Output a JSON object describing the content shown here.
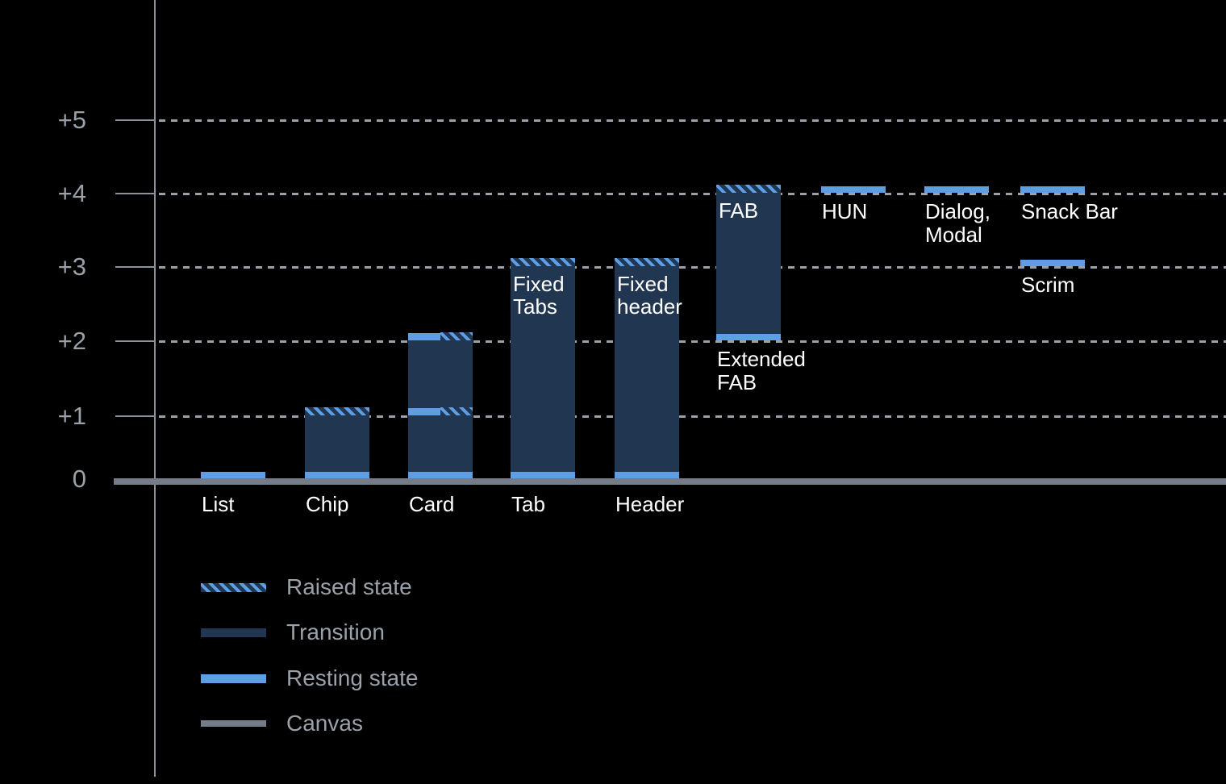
{
  "chart_data": {
    "type": "bar",
    "description": "Elevation diagram of UI components, levels 0 to +5",
    "grid": "dotted horizontal lines at each level",
    "y_axis": {
      "tick_labels": [
        "+5",
        "+4",
        "+3",
        "+2",
        "+1",
        "0"
      ],
      "tick_values": [
        5,
        4,
        3,
        2,
        1,
        0
      ],
      "range": [
        0,
        5
      ]
    },
    "x_axis_labels": [
      "List",
      "Chip",
      "Card",
      "Tab",
      "Header"
    ],
    "components": [
      {
        "name": "List",
        "column": 0,
        "axis_label": "List",
        "resting": [
          0
        ]
      },
      {
        "name": "Chip",
        "column": 1,
        "axis_label": "Chip",
        "transition": [
          0,
          1
        ],
        "raised": [
          1
        ],
        "resting": [
          0
        ]
      },
      {
        "name": "Card",
        "column": 2,
        "axis_label": "Card",
        "transition": [
          0,
          2
        ],
        "split": [
          2,
          1
        ],
        "resting": [
          0
        ]
      },
      {
        "name": "Tab",
        "column": 3,
        "axis_label": "Tab",
        "transition": [
          0,
          3
        ],
        "raised": [
          3
        ],
        "resting": [
          0
        ],
        "bar_label": [
          "Fixed",
          "Tabs"
        ],
        "bar_label_level": 3
      },
      {
        "name": "Header",
        "column": 4,
        "axis_label": "Header",
        "transition": [
          0,
          3
        ],
        "raised": [
          3
        ],
        "resting": [
          0
        ],
        "bar_label": [
          "Fixed",
          "header"
        ],
        "bar_label_level": 3
      },
      {
        "name": "FAB",
        "column": 5,
        "transition": [
          2,
          4
        ],
        "raised": [
          4
        ],
        "resting": [
          2
        ],
        "bar_label": [
          "FAB"
        ],
        "bar_label_level": 4,
        "below_label": [
          "Extended",
          "FAB"
        ],
        "below_label_level": 2
      },
      {
        "name": "HUN",
        "column": 6,
        "resting": [
          4
        ],
        "below_label": [
          "HUN"
        ],
        "below_label_level": 4
      },
      {
        "name": "Dialog, Modal",
        "column": 7,
        "resting": [
          4
        ],
        "below_label": [
          "Dialog,",
          "Modal"
        ],
        "below_label_level": 4
      },
      {
        "name": "Snack Bar",
        "column": 8,
        "resting": [
          4
        ],
        "below_label": [
          "Snack Bar"
        ],
        "below_label_level": 4
      },
      {
        "name": "Scrim",
        "column": 8,
        "resting": [
          3
        ],
        "below_label": [
          "Scrim"
        ],
        "below_label_level": 3
      }
    ],
    "legend": {
      "position": "bottom-left",
      "items": [
        {
          "label": "Raised state",
          "swatch": "raised"
        },
        {
          "label": "Transition",
          "swatch": "transition"
        },
        {
          "label": "Resting state",
          "swatch": "resting"
        },
        {
          "label": "Canvas",
          "swatch": "canvas"
        }
      ]
    }
  },
  "colors": {
    "resting_blue": "#5d9ee5",
    "transition_navy": "#213650",
    "canvas_gray": "#767d8a",
    "gridline_gray": "#9aa1a9",
    "axis_gray": "#8b929c",
    "label_white": "#ffffff",
    "background": "#000000"
  }
}
